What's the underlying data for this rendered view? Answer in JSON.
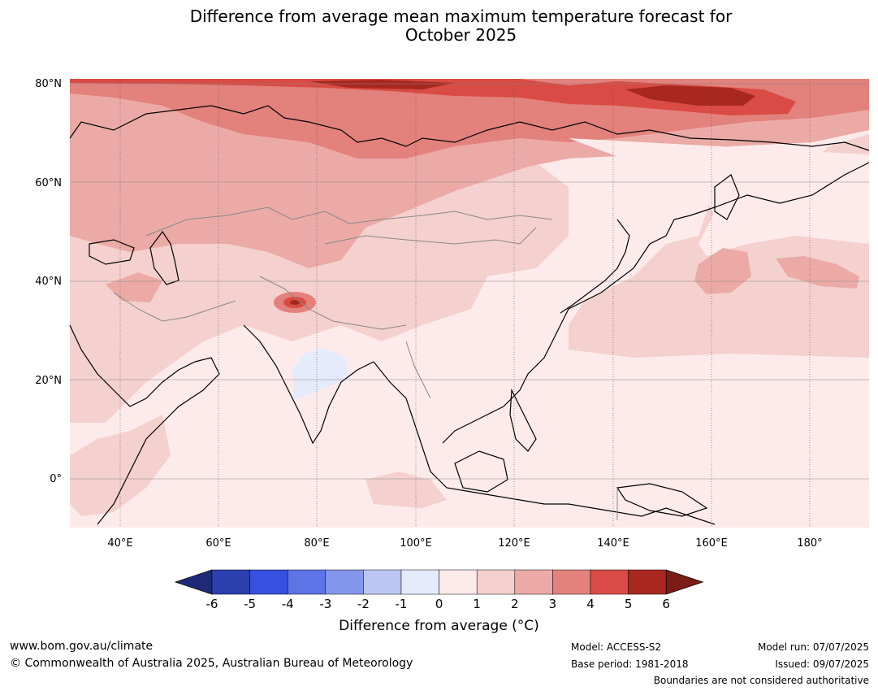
{
  "title": {
    "line1": "Difference from average mean maximum temperature forecast for",
    "line2": "October 2025"
  },
  "map": {
    "lat_labels": [
      "80°N",
      "60°N",
      "40°N",
      "20°N",
      "0°"
    ],
    "lon_labels": [
      "40°E",
      "60°E",
      "80°E",
      "100°E",
      "120°E",
      "140°E",
      "160°E",
      "180°"
    ],
    "lat_range": [
      -10,
      81
    ],
    "lon_range": [
      30,
      192
    ]
  },
  "colorbar": {
    "ticks": [
      "-6",
      "-5",
      "-4",
      "-3",
      "-2",
      "-1",
      "0",
      "1",
      "2",
      "3",
      "4",
      "5",
      "6"
    ],
    "colors": [
      "#2b3fae",
      "#3651e0",
      "#5c74e6",
      "#8597ec",
      "#bcc6f4",
      "#e6ebfb",
      "#fcebea",
      "#f4d0ce",
      "#ecaaa7",
      "#e3817c",
      "#d94b44",
      "#a8281f"
    ],
    "under_color": "#1e2a78",
    "over_color": "#7a1d17",
    "title": "Difference from average (°C)"
  },
  "footer": {
    "website": "www.bom.gov.au/climate",
    "copyright": "© Commonwealth of Australia 2025, Australian Bureau of Meteorology",
    "model": "Model: ACCESS-S2",
    "base_period": "Base period: 1981-2018",
    "model_run": "Model run: 07/07/2025",
    "issued": "Issued: 09/07/2025",
    "disclaimer": "Boundaries are not considered authoritative"
  }
}
